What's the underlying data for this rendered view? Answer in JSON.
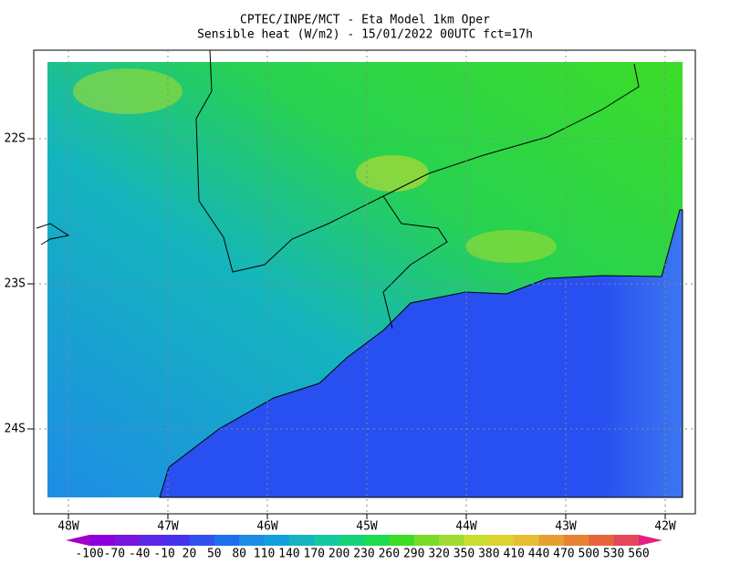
{
  "header": {
    "title": "CPTEC/INPE/MCT -  Eta Model 1km Oper",
    "subtitle": "Sensible heat (W/m2) - 15/01/2022 00UTC fct=17h"
  },
  "map": {
    "lat_labels": [
      "22S",
      "23S",
      "24S"
    ],
    "lon_labels": [
      "48W",
      "47W",
      "46W",
      "45W",
      "44W",
      "43W",
      "42W"
    ]
  },
  "colorbar": {
    "labels": [
      "-100",
      "-70",
      "-40",
      "-10",
      "20",
      "50",
      "80",
      "110",
      "140",
      "170",
      "200",
      "230",
      "260",
      "290",
      "320",
      "350",
      "380",
      "410",
      "440",
      "470",
      "500",
      "530",
      "560"
    ],
    "colors": [
      "#a000c8",
      "#8c00dc",
      "#7814dc",
      "#5a28e6",
      "#4632f0",
      "#3250f0",
      "#1e6ef0",
      "#1e8ce6",
      "#14a0dc",
      "#14b4be",
      "#14c8a0",
      "#14d278",
      "#1edc50",
      "#3cdc28",
      "#78dc28",
      "#a0dc32",
      "#c8dc32",
      "#dcd232",
      "#e6be32",
      "#e6a032",
      "#e68232",
      "#e6643c",
      "#e6465a",
      "#e61e82"
    ]
  }
}
